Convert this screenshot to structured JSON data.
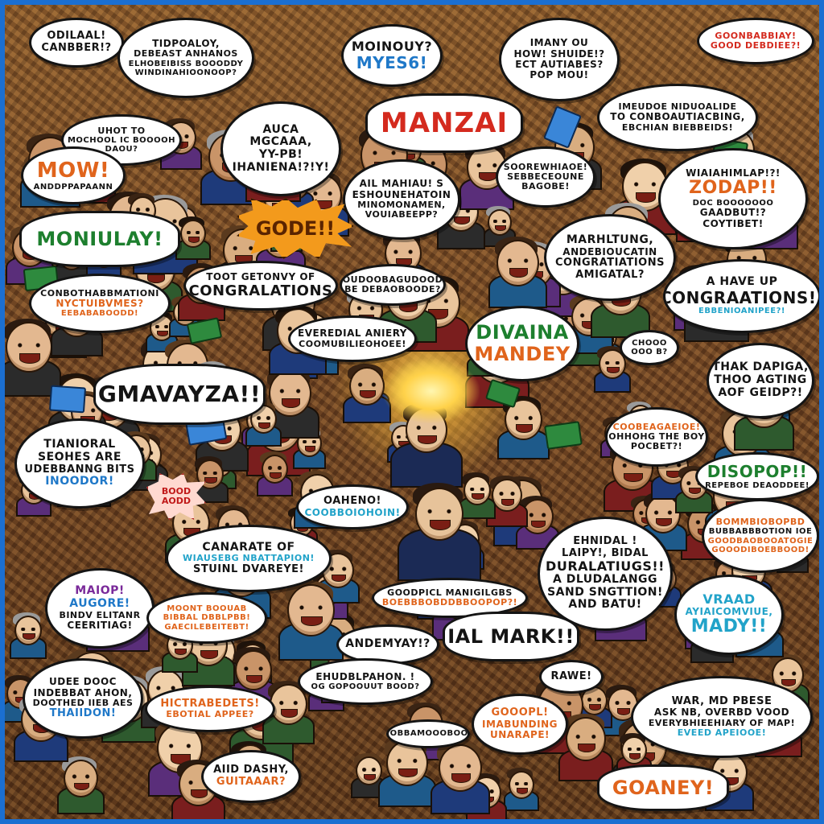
{
  "colors": {
    "frame_border": "#1b6fd1",
    "background": "#6f4322",
    "black": "#141414",
    "red": "#d42a1e",
    "blue": "#1f78c8",
    "cyan": "#22a3c9",
    "green": "#1d7f2e",
    "orange": "#e0641c",
    "purple": "#7a2a9a"
  },
  "bubbles": [
    {
      "lines": [
        "ODILAAL!",
        "CANBBER!?"
      ]
    },
    {
      "lines": [
        "TIDPOALOY,",
        "DEBEAST ANHANOS",
        "ELHOBEIBISS BOOODDY",
        "WINDINAHIOONOOP?"
      ]
    },
    {
      "lines": [
        "MOINOUY?",
        "MYES6!"
      ]
    },
    {
      "lines": [
        "IMANY OU",
        "HOW! SHUIDE!?",
        "ECT AUTIABES?",
        "POP MOU!"
      ]
    },
    {
      "lines": [
        "GOONBABBIAY!",
        "GOOD DEBDIEE?!"
      ]
    },
    {
      "lines": [
        "MANZAI"
      ]
    },
    {
      "lines": [
        "IMEUDOE NIDUOALIDE",
        "TO CONBOAUTIACBING,",
        "EBCHIAN BIEBBEIDS!"
      ]
    },
    {
      "lines": [
        "UHOT TO",
        "MOCHOOL IC BOOOOH",
        "DAOU?"
      ]
    },
    {
      "lines": [
        "AUCA",
        "MGCAAA,",
        "YY-PB!",
        "IHANIENA!?!Y!"
      ]
    },
    {
      "lines": [
        "SOOREWHIAOE!",
        "SEBBECEOUNE",
        "BAGOBE!"
      ]
    },
    {
      "lines": [
        "MOW!",
        "ANDDPPAPAANN"
      ]
    },
    {
      "lines": [
        "AIL MAHIAU! S",
        "ESHOUNEHATOIN",
        "MINOMONAMEN,",
        "VOUIABEEPP?"
      ]
    },
    {
      "lines": [
        "WIAIAHIMLAP!?!",
        "ZODAP!!",
        "DOC BOOOOOOO",
        "GAADBUT!?",
        "COYTIBET!"
      ]
    },
    {
      "lines": [
        "MONIULAY!"
      ]
    },
    {
      "lines": [
        "MARHLTUNG,",
        "ANDEBIOUCATIN",
        "CONGRATIATIONS",
        "AMIGATAL?"
      ]
    },
    {
      "lines": [
        "A HAVE UP",
        "CONGRAATIONS!!",
        "EBBENIOANIPEE?!"
      ]
    },
    {
      "lines": [
        "TOOT GETONVY OF",
        "CONGRALATIONS"
      ]
    },
    {
      "lines": [
        "OUDOOBAGUDOOD",
        "BE DEBAOBOODE?"
      ]
    },
    {
      "lines": [
        "CONBOTHABBMATIONI",
        "NYCTUIBVMES?",
        "EEBABABOODD!"
      ]
    },
    {
      "lines": [
        "EVEREDIAL ANIERY",
        "COOMUBILIEOHOEE!"
      ]
    },
    {
      "lines": [
        "DIVAINA",
        "MANDEY"
      ]
    },
    {
      "lines": [
        "CHOOO",
        "OOO B?"
      ]
    },
    {
      "lines": [
        "THAK DAPIGA,",
        "THOO AGTING",
        "AOF GEIDP?!"
      ]
    },
    {
      "lines": [
        "GMAVAYZA!!"
      ]
    },
    {
      "lines": [
        "COOBEAGAEIOE!",
        "OHHOHG THE BOY",
        "POCBET?!"
      ]
    },
    {
      "lines": [
        "TIANIORAL",
        "SEOHES ARE",
        "UDEBBANNG BITS",
        "INOODOR!"
      ]
    },
    {
      "lines": [
        "DISOPOP!!",
        "REPEBOE DEAODDEE!"
      ]
    },
    {
      "lines": [
        "OAHENO!",
        "COOBBOIOHOIN!"
      ]
    },
    {
      "lines": [
        "BOMMBIOBOPBD",
        "BUBBABBBOTION IOE",
        "GOODBAOBOOATOGIE",
        "GOOODIBOEBBOOD!"
      ]
    },
    {
      "lines": [
        "CANARATE OF",
        "WIAUSEBG NBATTAPION!",
        "STUINL DVAREYE!"
      ]
    },
    {
      "lines": [
        "EHNIDAL !",
        "LAIPY!, BIDAL",
        "DURALATIUGS!!",
        "A DLUDALANGG",
        "SAND SNGTTION!",
        "AND BATU!"
      ]
    },
    {
      "lines": [
        "MAIOP!",
        "AUGORE!",
        "BINDV ELITANR",
        "CEERITIAG!"
      ]
    },
    {
      "lines": [
        "GOODPICL MANIGILGBS",
        "BOEBBBOBDDBBOOPOP?!"
      ]
    },
    {
      "lines": [
        "MOONT BOOUAB",
        "BIBBAL DBBLPBB!",
        "GAECILEBEITEBT!"
      ]
    },
    {
      "lines": [
        "VRAAD",
        "AYIAICOMVIUE,",
        "MADY!!"
      ]
    },
    {
      "lines": [
        "ANDEMYAY!?"
      ]
    },
    {
      "lines": [
        "IAL MARK!!"
      ]
    },
    {
      "lines": [
        "UDEE DOOC",
        "INDEBBAT AHON,",
        "DOOTHED IIEB AES",
        "THAIIDON!"
      ]
    },
    {
      "lines": [
        "EHUDBLPAHON. !",
        "OG GOPOOUUT BOOD?"
      ]
    },
    {
      "lines": [
        "RAWE!"
      ]
    },
    {
      "lines": [
        "HICTRABEDETS!",
        "EBOTIAL APPEE?"
      ]
    },
    {
      "lines": [
        "GOOOPL!",
        "IMABUNDING",
        "UNARAPE!"
      ]
    },
    {
      "lines": [
        "WAR, MD PBESE",
        "ASK NB, OVERBD VOOD",
        "EVERYBHIEEHIARY OF MAP!",
        "EVEED APEIOOE!"
      ]
    },
    {
      "lines": [
        "EOBBAMOOOBOO!"
      ]
    },
    {
      "lines": [
        "AIID DASHY,",
        "GUITAAAR?"
      ]
    },
    {
      "lines": [
        "GOANEY!"
      ]
    }
  ],
  "bursts": [
    {
      "text": "GODE!!"
    },
    {
      "lines": [
        "BOOD",
        "AODD"
      ]
    }
  ]
}
